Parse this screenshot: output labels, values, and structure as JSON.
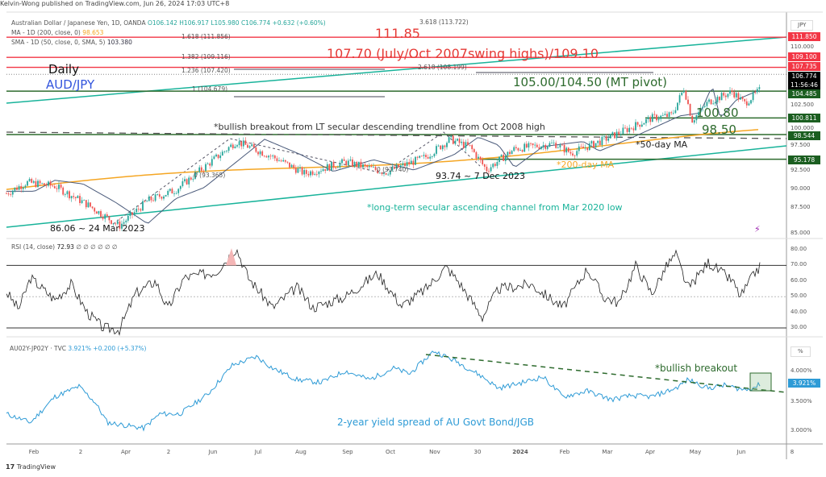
{
  "header": {
    "published": "Kelvin-Wong published on TradingView.com, Jun 26, 2024 17:03 UTC+8"
  },
  "legend": {
    "symbol": "Australian Dollar / Japanese Yen, 1D, OANDA",
    "open": "O106.142",
    "high": "H106.917",
    "low": "L105.980",
    "close": "C106.774",
    "change": "+0.632 (+0.60%)",
    "ma200_label": "MA - 1D (200, close, 0)",
    "ma200_value": "98.653",
    "sma50_label": "SMA - 1D (50, close, 0, SMA, 5)",
    "sma50_value": "103.380",
    "rsi_label": "RSI (14, close)",
    "rsi_value": "72.93",
    "rsi_extra": "∅ ∅ ∅ ∅ ∅ ∅",
    "spread_label": "AU02Y-JP02Y · TVC",
    "spread_value": "3.921%",
    "spread_change": "+0.200 (+5.37%)"
  },
  "fib": {
    "f3618": "3.618 (113.722)",
    "f1618": "1.618 (111.856)",
    "f1382": "1.382 (109.116)",
    "f2618": "2.618 (108.199)",
    "f1236": "1.236 (107.420)",
    "f1": "1 (104.679)",
    "f0a": "0 (93.365)",
    "f0b": "0 (93.740)"
  },
  "annotations": {
    "daily": "Daily",
    "pair": "AUD/JPY",
    "r1": "111.85",
    "r2": "107.70 (July/Oct 2007swing highs)/109.10",
    "pivot": "105.00/104.50 (MT pivot)",
    "s1": "100.80",
    "s2": "98.50",
    "breakout": "*bullish breakout from LT secular descending trendline from Oct 2008 high",
    "ma50": "*50-day MA",
    "ma200": "*200-day MA",
    "low_dec": "93.74 ~ 7 Dec 2023",
    "low_mar": "86.06 ~ 24 Mar 2023",
    "channel": "*long-term secular ascending channel from Mar 2020 low",
    "spread_breakout": "*bullish breakout",
    "spread_desc": "2-year yield spread of AU Govt Bond/JGB"
  },
  "price_axis": {
    "unit": "JPY",
    "ticks": [
      "110.000",
      "102.500",
      "100.000",
      "97.500",
      "92.500",
      "90.000",
      "87.500",
      "85.000"
    ],
    "tags": [
      {
        "v": "111.850",
        "c": "#f23645"
      },
      {
        "v": "109.100",
        "c": "#f23645"
      },
      {
        "v": "107.735",
        "c": "#f23645"
      },
      {
        "v": "106.774",
        "c": "#000"
      },
      {
        "v": "11:56:46",
        "c": "#000"
      },
      {
        "v": "104.485",
        "c": "#1b5e20"
      },
      {
        "v": "100.811",
        "c": "#1b5e20"
      },
      {
        "v": "98.544",
        "c": "#1b5e20"
      },
      {
        "v": "95.178",
        "c": "#1b5e20"
      }
    ]
  },
  "rsi_axis": {
    "ticks": [
      "80.00",
      "70.00",
      "60.00",
      "50.00",
      "40.00",
      "30.00"
    ]
  },
  "spread_axis": {
    "unit": "%",
    "ticks": [
      "4.000%",
      "3.500%",
      "3.000%"
    ],
    "tag": "3.921%"
  },
  "time_axis": [
    "Feb",
    "2",
    "Apr",
    "2",
    "Jun",
    "Jul",
    "Aug",
    "Sep",
    "Oct",
    "Nov",
    "30",
    "2024",
    "Feb",
    "Mar",
    "Apr",
    "May",
    "Jun",
    "8"
  ],
  "footer": {
    "brand": "TradingView"
  },
  "colors": {
    "up": "#26a69a",
    "down": "#ef5350",
    "ma200": "#f5a623",
    "sma50": "#4a5a7a",
    "red_level": "#f23645",
    "green_level": "#2e6b2e",
    "channel": "#18b39a",
    "spread": "#2e9bd6"
  },
  "chart_data": {
    "type": "line",
    "price_path": [
      [
        0,
        90.5
      ],
      [
        25,
        92
      ],
      [
        60,
        91.5
      ],
      [
        100,
        89
      ],
      [
        140,
        86.06
      ],
      [
        175,
        89.5
      ],
      [
        210,
        91
      ],
      [
        250,
        94.5
      ],
      [
        285,
        97.6
      ],
      [
        330,
        95.5
      ],
      [
        370,
        93.2
      ],
      [
        420,
        94.8
      ],
      [
        470,
        93.4
      ],
      [
        520,
        95.5
      ],
      [
        550,
        97.9
      ],
      [
        575,
        96.8
      ],
      [
        595,
        93.74
      ],
      [
        630,
        96.6
      ],
      [
        680,
        97.3
      ],
      [
        700,
        96
      ],
      [
        740,
        97.8
      ],
      [
        770,
        99.3
      ],
      [
        800,
        100.8
      ],
      [
        825,
        101.2
      ],
      [
        840,
        104.9
      ],
      [
        850,
        100.5
      ],
      [
        870,
        103
      ],
      [
        900,
        104.4
      ],
      [
        915,
        102.8
      ],
      [
        935,
        104.7
      ],
      [
        943,
        106.77
      ]
    ],
    "rsi_path": [
      [
        0,
        53
      ],
      [
        15,
        42
      ],
      [
        30,
        62
      ],
      [
        60,
        48
      ],
      [
        80,
        58
      ],
      [
        100,
        40
      ],
      [
        120,
        30
      ],
      [
        140,
        29
      ],
      [
        160,
        52
      ],
      [
        185,
        60
      ],
      [
        200,
        42
      ],
      [
        220,
        62
      ],
      [
        260,
        66
      ],
      [
        285,
        81
      ],
      [
        300,
        62
      ],
      [
        330,
        43
      ],
      [
        360,
        56
      ],
      [
        380,
        43
      ],
      [
        420,
        50
      ],
      [
        460,
        65
      ],
      [
        490,
        44
      ],
      [
        520,
        55
      ],
      [
        545,
        69
      ],
      [
        560,
        60
      ],
      [
        590,
        37
      ],
      [
        610,
        55
      ],
      [
        650,
        58
      ],
      [
        690,
        43
      ],
      [
        720,
        68
      ],
      [
        740,
        50
      ],
      [
        760,
        46
      ],
      [
        780,
        70
      ],
      [
        800,
        52
      ],
      [
        820,
        71
      ],
      [
        830,
        77
      ],
      [
        845,
        55
      ],
      [
        870,
        72
      ],
      [
        900,
        60
      ],
      [
        910,
        50
      ],
      [
        930,
        67
      ],
      [
        943,
        72.9
      ]
    ],
    "spread_path": [
      [
        0,
        3.3
      ],
      [
        30,
        3.15
      ],
      [
        60,
        3.6
      ],
      [
        90,
        3.78
      ],
      [
        110,
        3.5
      ],
      [
        125,
        3.15
      ],
      [
        170,
        3.05
      ],
      [
        190,
        3.3
      ],
      [
        215,
        3.3
      ],
      [
        250,
        3.65
      ],
      [
        280,
        4.15
      ],
      [
        310,
        4.3
      ],
      [
        330,
        4.1
      ],
      [
        360,
        3.9
      ],
      [
        390,
        3.85
      ],
      [
        420,
        4.05
      ],
      [
        450,
        3.9
      ],
      [
        480,
        4.1
      ],
      [
        500,
        4.0
      ],
      [
        530,
        4.4
      ],
      [
        560,
        4.2
      ],
      [
        590,
        3.95
      ],
      [
        610,
        3.75
      ],
      [
        640,
        3.85
      ],
      [
        665,
        3.95
      ],
      [
        690,
        3.6
      ],
      [
        720,
        3.7
      ],
      [
        750,
        3.55
      ],
      [
        775,
        3.62
      ],
      [
        800,
        3.6
      ],
      [
        830,
        3.75
      ],
      [
        845,
        3.9
      ],
      [
        870,
        3.75
      ],
      [
        890,
        3.8
      ],
      [
        915,
        3.72
      ],
      [
        930,
        3.78
      ],
      [
        943,
        3.92
      ]
    ],
    "price_range": [
      85,
      111.85
    ],
    "rsi_range": [
      30,
      80
    ],
    "spread_range": [
      3.0,
      4.0
    ]
  }
}
